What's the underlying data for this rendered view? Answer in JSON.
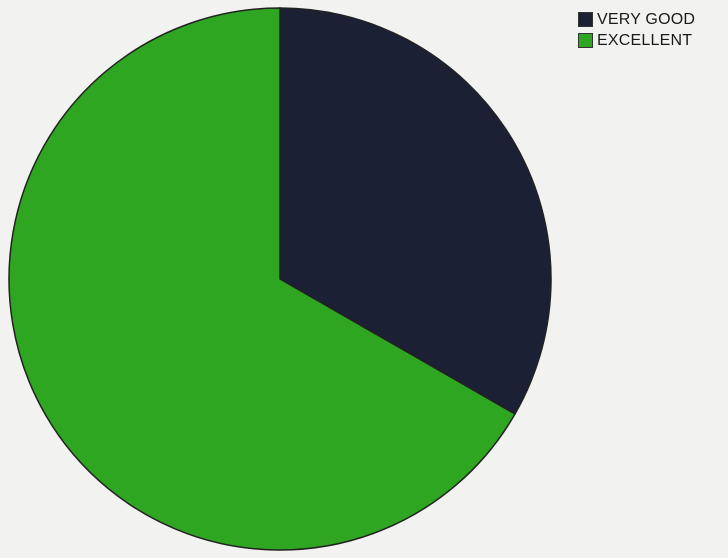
{
  "chart_data": {
    "type": "pie",
    "title": "",
    "slices": [
      {
        "label": "VERY GOOD",
        "value": 33.3,
        "color": "#1b2035"
      },
      {
        "label": "EXCELLENT",
        "value": 66.7,
        "color": "#2fa622"
      }
    ],
    "start_angle_deg": 0,
    "direction": "clockwise",
    "legend": {
      "placement": "top-right",
      "items": [
        {
          "label": "VERY GOOD",
          "color": "#1b2035"
        },
        {
          "label": "EXCELLENT",
          "color": "#2fa622"
        }
      ]
    }
  }
}
